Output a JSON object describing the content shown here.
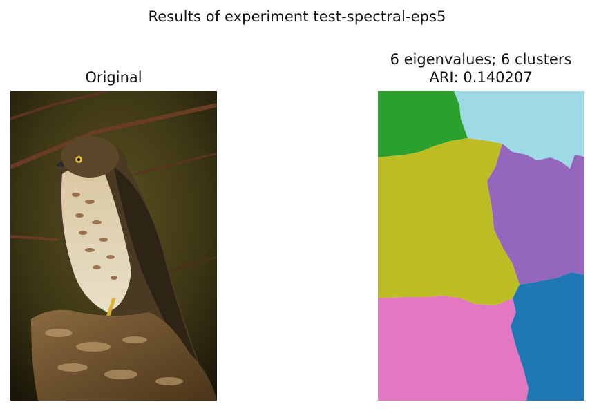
{
  "figure": {
    "suptitle": "Results of experiment test-spectral-eps5",
    "left_panel": {
      "title": "Original"
    },
    "right_panel": {
      "title_line1": "6 eigenvalues; 6 clusters",
      "title_line2": "ARI: 0.140207"
    }
  },
  "cluster_colors": {
    "green": "#2ca02c",
    "light_blue": "#9edae5",
    "olive": "#bcbd22",
    "purple": "#9467bd",
    "pink": "#e377c2",
    "blue": "#1f77b4"
  },
  "icons": {
    "left_image": "hawk-on-stump-photo",
    "right_image": "segmentation-map"
  }
}
